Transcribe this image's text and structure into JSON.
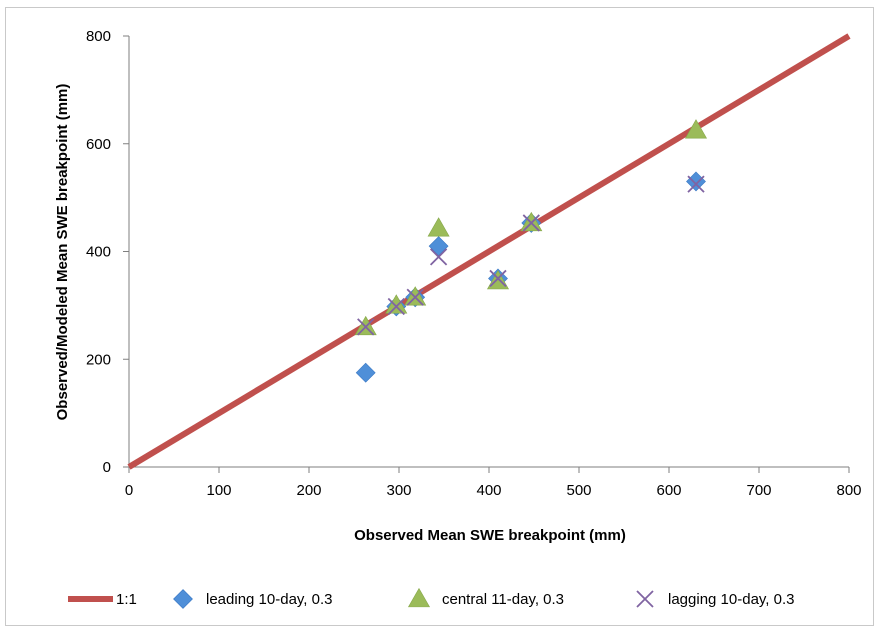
{
  "chart_data": {
    "type": "scatter",
    "title": "",
    "xlabel": "Observed Mean SWE breakpoint (mm)",
    "ylabel": "Observed/Modeled Mean SWE breakpoint (mm)",
    "xlim": [
      0,
      800
    ],
    "ylim": [
      0,
      800
    ],
    "x_ticks": [
      0,
      100,
      200,
      300,
      400,
      500,
      600,
      700,
      800
    ],
    "y_ticks": [
      0,
      200,
      400,
      600,
      800
    ],
    "grid": false,
    "legend_position": "bottom",
    "series": [
      {
        "name": "1:1",
        "kind": "line",
        "color": "#c0504d",
        "points": [
          [
            0,
            0
          ],
          [
            800,
            800
          ]
        ]
      },
      {
        "name": "leading 10-day, 0.3",
        "kind": "marker",
        "marker": "diamond",
        "color": "#4f8fd8",
        "points": [
          [
            263,
            175
          ],
          [
            297,
            298
          ],
          [
            318,
            315
          ],
          [
            344,
            410
          ],
          [
            410,
            350
          ],
          [
            447,
            453
          ],
          [
            630,
            530
          ]
        ]
      },
      {
        "name": "central 11-day, 0.3",
        "kind": "marker",
        "marker": "triangle",
        "color": "#9bbb59",
        "points": [
          [
            263,
            260
          ],
          [
            297,
            300
          ],
          [
            318,
            315
          ],
          [
            344,
            443
          ],
          [
            410,
            345
          ],
          [
            447,
            453
          ],
          [
            630,
            625
          ]
        ]
      },
      {
        "name": "lagging 10-day, 0.3",
        "kind": "marker",
        "marker": "x",
        "color": "#8064a2",
        "points": [
          [
            263,
            260
          ],
          [
            297,
            298
          ],
          [
            318,
            315
          ],
          [
            344,
            390
          ],
          [
            410,
            350
          ],
          [
            447,
            453
          ],
          [
            630,
            525
          ]
        ]
      }
    ]
  }
}
